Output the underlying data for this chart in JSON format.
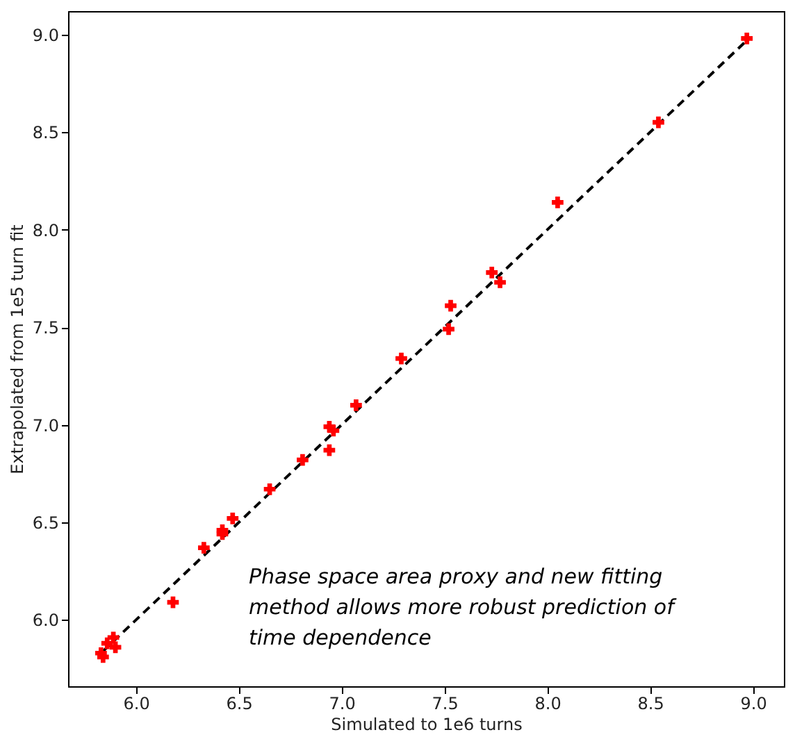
{
  "chart_data": {
    "type": "scatter",
    "xlabel": "Simulated to 1e6 turns",
    "ylabel": "Extrapolated from 1e5 turn fit",
    "xlim": [
      5.67,
      9.15
    ],
    "ylim": [
      5.66,
      9.12
    ],
    "xticks": [
      {
        "value": 6,
        "label": "6.0"
      },
      6.5,
      {
        "value": 7,
        "label": "7.0"
      },
      7.5,
      {
        "value": 8,
        "label": "8.0"
      },
      8.5,
      {
        "value": 9,
        "label": "9.0"
      }
    ],
    "yticks": [
      {
        "value": 6,
        "label": "6.0"
      },
      6.5,
      {
        "value": 7,
        "label": "7.0"
      },
      7.5,
      {
        "value": 8,
        "label": "8.0"
      },
      8.5,
      {
        "value": 9,
        "label": "9.0"
      }
    ],
    "grid": false,
    "annotations": [
      "Phase space area proxy and new fitting method allows more robust prediction of time dependence"
    ],
    "series": [
      {
        "color": "#ff0000",
        "marker": "cross",
        "x": [
          8.97,
          8.54,
          8.05,
          7.73,
          7.77,
          7.53,
          7.52,
          7.29,
          7.07,
          6.94,
          6.96,
          6.94,
          6.81,
          6.65,
          6.47,
          6.42,
          6.42,
          6.33,
          6.18,
          5.89,
          5.86,
          5.9,
          5.83,
          5.84
        ],
        "values": [
          8.98,
          8.55,
          8.14,
          7.78,
          7.73,
          7.61,
          7.49,
          7.34,
          7.1,
          6.99,
          6.97,
          6.87,
          6.82,
          6.67,
          6.52,
          6.46,
          6.44,
          6.37,
          6.09,
          5.91,
          5.88,
          5.86,
          5.83,
          5.81
        ]
      },
      {
        "type": "line",
        "color": "#000000",
        "line_style": "dashed",
        "marker": "none",
        "x": [
          5.84,
          8.97
        ],
        "values": [
          5.84,
          8.97
        ]
      }
    ]
  }
}
